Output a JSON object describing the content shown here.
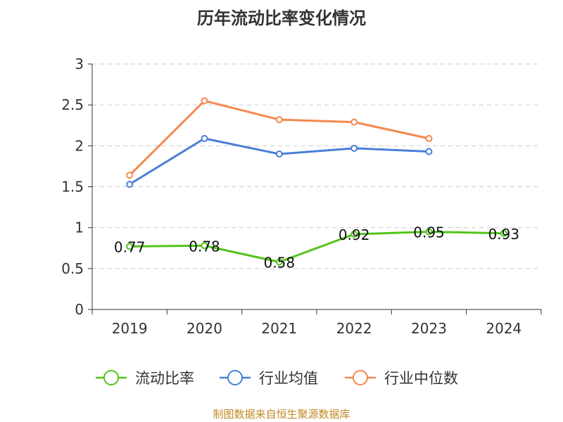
{
  "title": "历年流动比率变化情况",
  "source": "制图数据来自恒生聚源数据库",
  "chart_data": {
    "type": "line",
    "title": "历年流动比率变化情况",
    "categories": [
      "2019",
      "2020",
      "2021",
      "2022",
      "2023",
      "2024"
    ],
    "ylim": [
      0,
      3
    ],
    "yticks": [
      "0",
      "0.5",
      "1",
      "1.5",
      "2",
      "2.5",
      "3"
    ],
    "grid": true,
    "legend_position": "bottom",
    "series": [
      {
        "name": "流动比率",
        "color": "#52c41a",
        "values": [
          0.77,
          0.78,
          0.58,
          0.92,
          0.95,
          0.93
        ],
        "labels": [
          "0.77",
          "0.78",
          "0.58",
          "0.92",
          "0.95",
          "0.93"
        ]
      },
      {
        "name": "行业均值",
        "color": "#4a7fd8",
        "values": [
          1.53,
          2.09,
          1.9,
          1.97,
          1.93,
          null
        ]
      },
      {
        "name": "行业中位数",
        "color": "#f5884e",
        "values": [
          1.64,
          2.55,
          2.32,
          2.29,
          2.09,
          null
        ]
      }
    ]
  }
}
